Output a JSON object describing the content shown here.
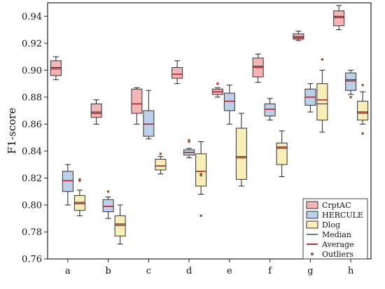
{
  "chart_data": {
    "type": "box",
    "ylabel": "F1-score",
    "xlabel": "",
    "ylim": [
      0.76,
      0.95
    ],
    "yticks": [
      "0.76",
      "0.78",
      "0.80",
      "0.82",
      "0.84",
      "0.86",
      "0.88",
      "0.90",
      "0.92",
      "0.94"
    ],
    "categories": [
      "a",
      "b",
      "c",
      "d",
      "e",
      "f",
      "g",
      "h"
    ],
    "grid": false,
    "legend_position": "bottom-right",
    "series": [
      {
        "name": "CrptAC",
        "fill": "#f3b5b5",
        "boxes": [
          {
            "min": 0.893,
            "q1": 0.896,
            "median": 0.902,
            "mean": 0.901,
            "q3": 0.907,
            "max": 0.91,
            "outliers": []
          },
          {
            "min": 0.86,
            "q1": 0.865,
            "median": 0.869,
            "mean": 0.868,
            "q3": 0.875,
            "max": 0.878,
            "outliers": []
          },
          {
            "min": 0.86,
            "q1": 0.868,
            "median": 0.875,
            "mean": 0.875,
            "q3": 0.886,
            "max": 0.887,
            "outliers": []
          },
          {
            "min": 0.89,
            "q1": 0.894,
            "median": 0.897,
            "mean": 0.897,
            "q3": 0.902,
            "max": 0.907,
            "outliers": []
          },
          {
            "min": 0.88,
            "q1": 0.882,
            "median": 0.884,
            "mean": 0.884,
            "q3": 0.886,
            "max": 0.887,
            "outliers": [
              0.89
            ]
          },
          {
            "min": 0.891,
            "q1": 0.895,
            "median": 0.903,
            "mean": 0.902,
            "q3": 0.909,
            "max": 0.912,
            "outliers": []
          },
          {
            "min": 0.922,
            "q1": 0.923,
            "median": 0.925,
            "mean": 0.924,
            "q3": 0.927,
            "max": 0.929,
            "outliers": []
          },
          {
            "min": 0.93,
            "q1": 0.933,
            "median": 0.94,
            "mean": 0.939,
            "q3": 0.944,
            "max": 0.948,
            "outliers": []
          }
        ]
      },
      {
        "name": "HERCULE",
        "fill": "#bcd0ea",
        "boxes": [
          {
            "min": 0.8,
            "q1": 0.81,
            "median": 0.818,
            "mean": 0.818,
            "q3": 0.825,
            "max": 0.83,
            "outliers": []
          },
          {
            "min": 0.79,
            "q1": 0.795,
            "median": 0.799,
            "mean": 0.799,
            "q3": 0.804,
            "max": 0.806,
            "outliers": [
              0.81
            ]
          },
          {
            "min": 0.849,
            "q1": 0.851,
            "median": 0.86,
            "mean": 0.86,
            "q3": 0.87,
            "max": 0.885,
            "outliers": []
          },
          {
            "min": 0.835,
            "q1": 0.837,
            "median": 0.839,
            "mean": 0.839,
            "q3": 0.841,
            "max": 0.842,
            "outliers": [
              0.847,
              0.848
            ]
          },
          {
            "min": 0.86,
            "q1": 0.87,
            "median": 0.877,
            "mean": 0.877,
            "q3": 0.883,
            "max": 0.889,
            "outliers": []
          },
          {
            "min": 0.863,
            "q1": 0.866,
            "median": 0.871,
            "mean": 0.871,
            "q3": 0.875,
            "max": 0.879,
            "outliers": []
          },
          {
            "min": 0.869,
            "q1": 0.874,
            "median": 0.88,
            "mean": 0.88,
            "q3": 0.886,
            "max": 0.89,
            "outliers": []
          },
          {
            "min": 0.882,
            "q1": 0.885,
            "median": 0.893,
            "mean": 0.892,
            "q3": 0.898,
            "max": 0.9,
            "outliers": [
              0.88
            ]
          }
        ]
      },
      {
        "name": "Dlog",
        "fill": "#f8efb8",
        "boxes": [
          {
            "min": 0.792,
            "q1": 0.796,
            "median": 0.802,
            "mean": 0.801,
            "q3": 0.807,
            "max": 0.811,
            "outliers": [
              0.818,
              0.819
            ]
          },
          {
            "min": 0.771,
            "q1": 0.777,
            "median": 0.786,
            "mean": 0.785,
            "q3": 0.792,
            "max": 0.8,
            "outliers": []
          },
          {
            "min": 0.823,
            "q1": 0.826,
            "median": 0.829,
            "mean": 0.829,
            "q3": 0.834,
            "max": 0.836,
            "outliers": [
              0.838
            ]
          },
          {
            "min": 0.808,
            "q1": 0.814,
            "median": 0.825,
            "mean": 0.825,
            "q3": 0.838,
            "max": 0.847,
            "outliers": [
              0.792,
              0.822,
              0.823
            ]
          },
          {
            "min": 0.814,
            "q1": 0.819,
            "median": 0.836,
            "mean": 0.835,
            "q3": 0.857,
            "max": 0.868,
            "outliers": []
          },
          {
            "min": 0.821,
            "q1": 0.83,
            "median": 0.842,
            "mean": 0.843,
            "q3": 0.846,
            "max": 0.855,
            "outliers": []
          },
          {
            "min": 0.854,
            "q1": 0.863,
            "median": 0.875,
            "mean": 0.878,
            "q3": 0.89,
            "max": 0.9,
            "outliers": [
              0.908
            ]
          },
          {
            "min": 0.86,
            "q1": 0.863,
            "median": 0.868,
            "mean": 0.869,
            "q3": 0.877,
            "max": 0.884,
            "outliers": [
              0.853,
              0.889
            ]
          }
        ]
      }
    ],
    "legend": {
      "entries": [
        "CrptAC",
        "HERCULE",
        "Dlog",
        "Median",
        "Average",
        "Outliers"
      ],
      "median_color": "#222222",
      "average_color": "#b22222",
      "outlier_color": "#a0522d"
    }
  }
}
